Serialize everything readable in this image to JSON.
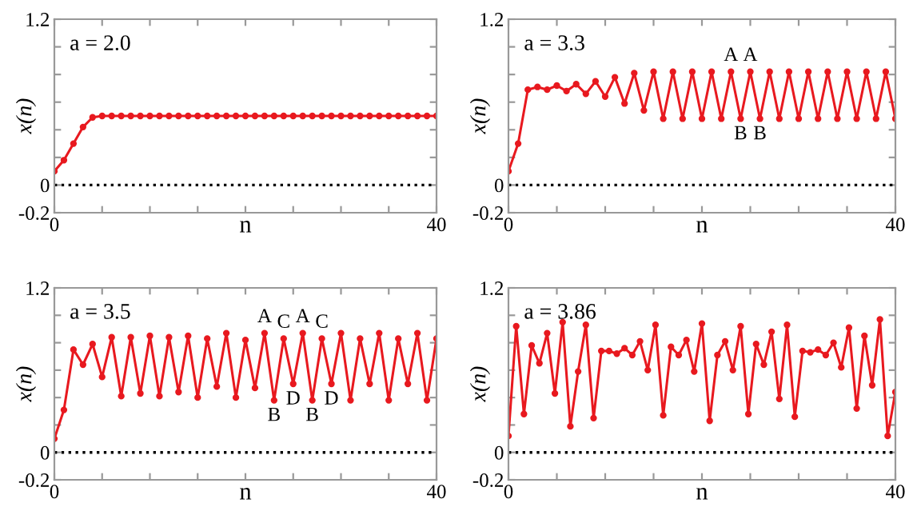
{
  "chart_data": [
    {
      "type": "line",
      "xlabel": "n",
      "ylabel": "x(n)",
      "annotations": [
        "a = 2.0"
      ],
      "marker": "circle",
      "grid": false,
      "xlim": [
        0,
        40
      ],
      "xticks": [
        0,
        {
          "value": 5,
          "label": null
        },
        {
          "value": 10,
          "label": null
        },
        {
          "value": 15,
          "label": null
        },
        {
          "value": 20,
          "label": null
        },
        {
          "value": 25,
          "label": null
        },
        {
          "value": 30,
          "label": null
        },
        {
          "value": 35,
          "label": null
        },
        40
      ],
      "ylim": [
        -0.2,
        1.2
      ],
      "yticks": [
        {
          "value": -0.2,
          "label": "-0.2"
        },
        0,
        {
          "value": 0.2,
          "label": null
        },
        {
          "value": 0.4,
          "label": null
        },
        {
          "value": 0.6,
          "label": null
        },
        {
          "value": 0.8,
          "label": null
        },
        {
          "value": 1.0,
          "label": null
        },
        1.2
      ],
      "ref_lines": [
        {
          "axis": "y",
          "value": 0,
          "color": "#000000",
          "line_style": "dotted"
        }
      ],
      "series": [
        {
          "color": "#e8191f",
          "x": [
            0,
            1,
            2,
            3,
            4,
            5,
            6,
            7,
            8,
            9,
            10,
            11,
            12,
            13,
            14,
            15,
            16,
            17,
            18,
            19,
            20,
            21,
            22,
            23,
            24,
            25,
            26,
            27,
            28,
            29,
            30,
            31,
            32,
            33,
            34,
            35,
            36,
            37,
            38,
            39,
            40
          ],
          "values": [
            0.1,
            0.18,
            0.3,
            0.42,
            0.49,
            0.5,
            0.5,
            0.5,
            0.5,
            0.5,
            0.5,
            0.5,
            0.5,
            0.5,
            0.5,
            0.5,
            0.5,
            0.5,
            0.5,
            0.5,
            0.5,
            0.5,
            0.5,
            0.5,
            0.5,
            0.5,
            0.5,
            0.5,
            0.5,
            0.5,
            0.5,
            0.5,
            0.5,
            0.5,
            0.5,
            0.5,
            0.5,
            0.5,
            0.5,
            0.5,
            0.5
          ]
        }
      ]
    },
    {
      "type": "line",
      "xlabel": "n",
      "ylabel": "x(n)",
      "annotations": [
        "a = 3.3",
        {
          "text": "A",
          "x": 23,
          "y": 0.82
        },
        {
          "text": "A",
          "x": 25,
          "y": 0.82
        },
        {
          "text": "B",
          "x": 24,
          "y": 0.48
        },
        {
          "text": "B",
          "x": 26,
          "y": 0.48
        }
      ],
      "marker": "circle",
      "grid": false,
      "xlim": [
        0,
        40
      ],
      "xticks": [
        0,
        {
          "value": 5,
          "label": null
        },
        {
          "value": 10,
          "label": null
        },
        {
          "value": 15,
          "label": null
        },
        {
          "value": 20,
          "label": null
        },
        {
          "value": 25,
          "label": null
        },
        {
          "value": 30,
          "label": null
        },
        {
          "value": 35,
          "label": null
        },
        40
      ],
      "ylim": [
        -0.2,
        1.2
      ],
      "yticks": [
        {
          "value": -0.2,
          "label": "-0.2"
        },
        0,
        {
          "value": 0.2,
          "label": null
        },
        {
          "value": 0.4,
          "label": null
        },
        {
          "value": 0.6,
          "label": null
        },
        {
          "value": 0.8,
          "label": null
        },
        {
          "value": 1.0,
          "label": null
        },
        1.2
      ],
      "ref_lines": [
        {
          "axis": "y",
          "value": 0,
          "color": "#000000",
          "line_style": "dotted"
        }
      ],
      "series": [
        {
          "color": "#e8191f",
          "x": [
            0,
            1,
            2,
            3,
            4,
            5,
            6,
            7,
            8,
            9,
            10,
            11,
            12,
            13,
            14,
            15,
            16,
            17,
            18,
            19,
            20,
            21,
            22,
            23,
            24,
            25,
            26,
            27,
            28,
            29,
            30,
            31,
            32,
            33,
            34,
            35,
            36,
            37,
            38,
            39,
            40
          ],
          "values": [
            0.1,
            0.3,
            0.69,
            0.71,
            0.69,
            0.72,
            0.68,
            0.73,
            0.66,
            0.75,
            0.64,
            0.78,
            0.59,
            0.81,
            0.54,
            0.82,
            0.48,
            0.82,
            0.48,
            0.82,
            0.48,
            0.82,
            0.48,
            0.82,
            0.48,
            0.82,
            0.48,
            0.82,
            0.48,
            0.82,
            0.48,
            0.82,
            0.48,
            0.82,
            0.48,
            0.82,
            0.48,
            0.82,
            0.48,
            0.82,
            0.48
          ]
        }
      ]
    },
    {
      "type": "line",
      "xlabel": "n",
      "ylabel": "x(n)",
      "annotations": [
        "a = 3.5",
        {
          "text": "A",
          "x": 22,
          "y": 0.87
        },
        {
          "text": "C",
          "x": 24,
          "y": 0.83
        },
        {
          "text": "A",
          "x": 26,
          "y": 0.87
        },
        {
          "text": "C",
          "x": 28,
          "y": 0.83
        },
        {
          "text": "B",
          "x": 23,
          "y": 0.38
        },
        {
          "text": "D",
          "x": 25,
          "y": 0.5
        },
        {
          "text": "B",
          "x": 27,
          "y": 0.38
        },
        {
          "text": "D",
          "x": 29,
          "y": 0.5
        }
      ],
      "marker": "circle",
      "grid": false,
      "xlim": [
        0,
        40
      ],
      "xticks": [
        0,
        {
          "value": 5,
          "label": null
        },
        {
          "value": 10,
          "label": null
        },
        {
          "value": 15,
          "label": null
        },
        {
          "value": 20,
          "label": null
        },
        {
          "value": 25,
          "label": null
        },
        {
          "value": 30,
          "label": null
        },
        {
          "value": 35,
          "label": null
        },
        40
      ],
      "ylim": [
        -0.2,
        1.2
      ],
      "yticks": [
        {
          "value": -0.2,
          "label": "-0.2"
        },
        0,
        {
          "value": 0.2,
          "label": null
        },
        {
          "value": 0.4,
          "label": null
        },
        {
          "value": 0.6,
          "label": null
        },
        {
          "value": 0.8,
          "label": null
        },
        {
          "value": 1.0,
          "label": null
        },
        1.2
      ],
      "ref_lines": [
        {
          "axis": "y",
          "value": 0,
          "color": "#000000",
          "line_style": "dotted"
        }
      ],
      "series": [
        {
          "color": "#e8191f",
          "x": [
            0,
            1,
            2,
            3,
            4,
            5,
            6,
            7,
            8,
            9,
            10,
            11,
            12,
            13,
            14,
            15,
            16,
            17,
            18,
            19,
            20,
            21,
            22,
            23,
            24,
            25,
            26,
            27,
            28,
            29,
            30,
            31,
            32,
            33,
            34,
            35,
            36,
            37,
            38,
            39,
            40
          ],
          "values": [
            0.1,
            0.31,
            0.75,
            0.64,
            0.79,
            0.55,
            0.84,
            0.41,
            0.84,
            0.43,
            0.85,
            0.41,
            0.84,
            0.44,
            0.85,
            0.4,
            0.83,
            0.48,
            0.87,
            0.4,
            0.82,
            0.47,
            0.87,
            0.38,
            0.83,
            0.5,
            0.87,
            0.38,
            0.83,
            0.5,
            0.87,
            0.38,
            0.83,
            0.5,
            0.87,
            0.38,
            0.83,
            0.5,
            0.87,
            0.38,
            0.83
          ]
        }
      ]
    },
    {
      "type": "line",
      "xlabel": "n",
      "ylabel": "x(n)",
      "annotations": [
        "a = 3.86"
      ],
      "marker": "circle",
      "grid": false,
      "xlim": [
        0,
        40
      ],
      "xticks": [
        0,
        {
          "value": 5,
          "label": null
        },
        {
          "value": 10,
          "label": null
        },
        {
          "value": 15,
          "label": null
        },
        {
          "value": 20,
          "label": null
        },
        {
          "value": 25,
          "label": null
        },
        {
          "value": 30,
          "label": null
        },
        {
          "value": 35,
          "label": null
        },
        40
      ],
      "ylim": [
        -0.2,
        1.2
      ],
      "yticks": [
        {
          "value": -0.2,
          "label": "-0.2"
        },
        0,
        {
          "value": 0.2,
          "label": null
        },
        {
          "value": 0.4,
          "label": null
        },
        {
          "value": 0.6,
          "label": null
        },
        {
          "value": 0.8,
          "label": null
        },
        {
          "value": 1.0,
          "label": null
        },
        1.2
      ],
      "ref_lines": [
        {
          "axis": "y",
          "value": 0,
          "color": "#000000",
          "line_style": "dotted"
        }
      ],
      "series": [
        {
          "color": "#e8191f",
          "x": [
            0,
            0.8,
            1.6,
            2.4,
            3.2,
            4,
            4.8,
            5.6,
            6.4,
            7.2,
            8,
            8.8,
            9.6,
            10.4,
            11.2,
            12,
            12.8,
            13.6,
            14.4,
            15.2,
            16,
            16.8,
            17.6,
            18.4,
            19.2,
            20,
            20.8,
            21.6,
            22.4,
            23.2,
            24,
            24.8,
            25.6,
            26.4,
            27.2,
            28,
            28.8,
            29.6,
            30.4,
            31.2,
            32,
            32.8,
            33.6,
            34.4,
            35.2,
            36,
            36.8,
            37.6,
            38.4,
            39.2,
            40
          ],
          "values": [
            0.12,
            0.92,
            0.28,
            0.78,
            0.65,
            0.87,
            0.43,
            0.95,
            0.19,
            0.59,
            0.93,
            0.25,
            0.74,
            0.74,
            0.72,
            0.76,
            0.71,
            0.81,
            0.6,
            0.93,
            0.27,
            0.77,
            0.71,
            0.82,
            0.59,
            0.94,
            0.23,
            0.71,
            0.81,
            0.6,
            0.92,
            0.28,
            0.79,
            0.64,
            0.88,
            0.39,
            0.93,
            0.26,
            0.74,
            0.73,
            0.75,
            0.71,
            0.8,
            0.62,
            0.91,
            0.32,
            0.85,
            0.49,
            0.97,
            0.12,
            0.44
          ]
        }
      ]
    }
  ]
}
